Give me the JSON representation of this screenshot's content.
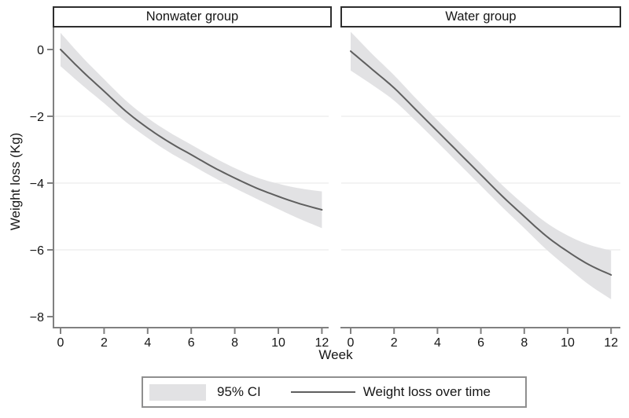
{
  "figure": {
    "x_axis_label": "Week",
    "y_axis_label": "Weight loss (Kg)"
  },
  "legend": {
    "ci_label": "95% CI",
    "line_label": "Weight loss over time"
  },
  "colors": {
    "ci_band": "#e2e2e4",
    "trend_line": "#5f5f5f",
    "axis": "#808080",
    "gridline": "#efefef",
    "panel_border": "#2e2e2e",
    "legend_border": "#8f8f8f",
    "text": "#161616"
  },
  "chart_data": [
    {
      "type": "line",
      "title": "Nonwater group",
      "xlabel": "Week",
      "ylabel": "Weight loss (Kg)",
      "x": [
        0,
        1,
        2,
        3,
        4,
        5,
        6,
        7,
        8,
        9,
        10,
        11,
        12
      ],
      "series": [
        {
          "name": "Weight loss over time",
          "values": [
            0,
            -0.65,
            -1.25,
            -1.85,
            -2.35,
            -2.78,
            -3.15,
            -3.52,
            -3.85,
            -4.15,
            -4.4,
            -4.62,
            -4.8
          ]
        }
      ],
      "ci_upper": [
        0.5,
        -0.23,
        -0.89,
        -1.53,
        -2.05,
        -2.48,
        -2.85,
        -3.22,
        -3.55,
        -3.83,
        -4.02,
        -4.16,
        -4.25
      ],
      "ci_lower": [
        -0.5,
        -1.07,
        -1.61,
        -2.17,
        -2.65,
        -3.08,
        -3.45,
        -3.82,
        -4.15,
        -4.47,
        -4.78,
        -5.08,
        -5.35
      ],
      "xlim": [
        0,
        12
      ],
      "ylim": [
        -8.3,
        0.65
      ],
      "x_ticks": [
        0,
        2,
        4,
        6,
        8,
        10,
        12
      ],
      "x_tick_labels": [
        "0",
        "2",
        "4",
        "6",
        "8",
        "10",
        "12"
      ],
      "y_ticks": [
        0,
        -2,
        -4,
        -6,
        -8
      ],
      "y_tick_labels": [
        "0",
        "−2",
        "−4",
        "−6",
        "−8"
      ],
      "grid_y": [
        -2,
        -4,
        -6
      ],
      "grid": "faint-horizontal",
      "legend_position": "bottom"
    },
    {
      "type": "line",
      "title": "Water group",
      "xlabel": "Week",
      "ylabel": "Weight loss (Kg)",
      "x": [
        0,
        1,
        2,
        3,
        4,
        5,
        6,
        7,
        8,
        9,
        10,
        11,
        12
      ],
      "series": [
        {
          "name": "Weight loss over time",
          "values": [
            -0.05,
            -0.6,
            -1.15,
            -1.8,
            -2.45,
            -3.1,
            -3.75,
            -4.4,
            -5.0,
            -5.58,
            -6.05,
            -6.45,
            -6.75
          ]
        }
      ],
      "ci_upper": [
        0.53,
        -0.14,
        -0.77,
        -1.46,
        -2.12,
        -2.77,
        -3.42,
        -4.07,
        -4.65,
        -5.18,
        -5.57,
        -5.85,
        -6.02
      ],
      "ci_lower": [
        -0.63,
        -1.06,
        -1.53,
        -2.14,
        -2.78,
        -3.43,
        -4.08,
        -4.73,
        -5.35,
        -5.98,
        -6.53,
        -7.05,
        -7.48
      ],
      "xlim": [
        0,
        12
      ],
      "ylim": [
        -8.3,
        0.65
      ],
      "x_ticks": [
        0,
        2,
        4,
        6,
        8,
        10,
        12
      ],
      "x_tick_labels": [
        "0",
        "2",
        "4",
        "6",
        "8",
        "10",
        "12"
      ],
      "y_ticks": [
        0,
        -2,
        -4,
        -6,
        -8
      ],
      "y_tick_labels": [
        "0",
        "−2",
        "−4",
        "−6",
        "−8"
      ],
      "grid_y": [
        -2,
        -4,
        -6
      ],
      "grid": "faint-horizontal",
      "legend_position": "bottom"
    }
  ]
}
